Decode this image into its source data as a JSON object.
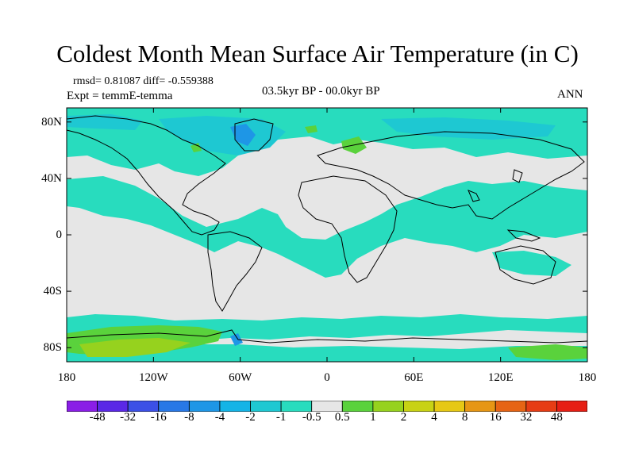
{
  "title": "Coldest Month Mean Surface Air Temperature (in C)",
  "stats": "rmsd= 0.81087 diff= -0.559388",
  "experiment": "Expt = temmE-temma",
  "period": "03.5kyr BP - 00.0kyr BP",
  "season": "ANN",
  "map": {
    "lon_range": [
      -180,
      180
    ],
    "lat_range": [
      -90,
      90
    ],
    "lat_ticks": [
      {
        "value": 80,
        "label": "80N"
      },
      {
        "value": 40,
        "label": "40N"
      },
      {
        "value": 0,
        "label": "0"
      },
      {
        "value": -40,
        "label": "40S"
      },
      {
        "value": -80,
        "label": "80S"
      }
    ],
    "lon_ticks": [
      {
        "value": -180,
        "label": "180"
      },
      {
        "value": -120,
        "label": "120W"
      },
      {
        "value": -60,
        "label": "60W"
      },
      {
        "value": 0,
        "label": "0"
      },
      {
        "value": 60,
        "label": "60E"
      },
      {
        "value": 120,
        "label": "120E"
      },
      {
        "value": 180,
        "label": "180"
      }
    ],
    "land_outline_color": "#000000"
  },
  "colorbar": {
    "labels": [
      "-48",
      "-32",
      "-16",
      "-8",
      "-4",
      "-2",
      "-1",
      "-0.5",
      "0.5",
      "1",
      "2",
      "4",
      "8",
      "16",
      "32",
      "48"
    ],
    "colors": [
      "#8a1ee6",
      "#5a28e6",
      "#3c50e6",
      "#2878e6",
      "#1e96e6",
      "#14b4e6",
      "#1ec8d2",
      "#28dcbe",
      "#e6e6e6",
      "#5ad23c",
      "#96d21e",
      "#c8d214",
      "#e6c814",
      "#e69614",
      "#e66414",
      "#e63c14",
      "#e61e14"
    ]
  },
  "fields": {
    "neutral": "#e6e6e6",
    "cool": "#28dcbe",
    "cooler": "#1ec8d2",
    "coolest": "#1e96e6",
    "warm": "#5ad23c",
    "warmer": "#96d21e"
  }
}
